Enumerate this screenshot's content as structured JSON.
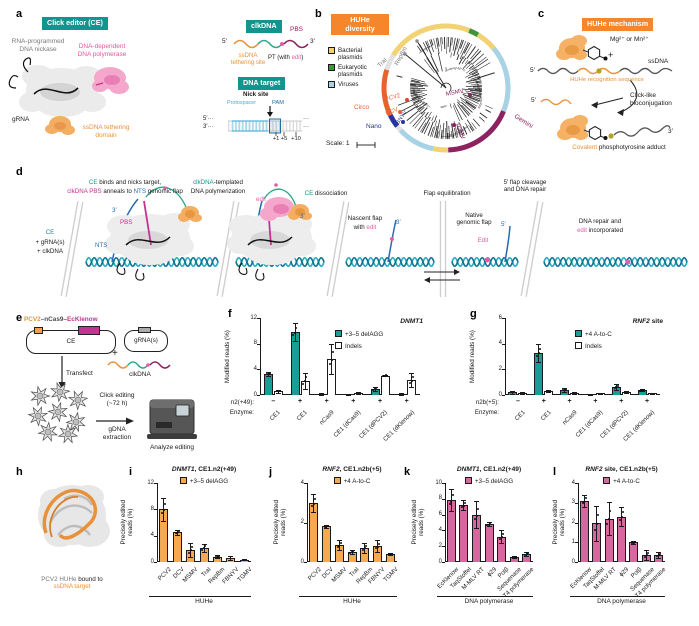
{
  "colors": {
    "teal": "#12958E",
    "orange_banner": "#F6862B",
    "ssdna_orange": "#E8913B",
    "pink_blob": "#F4A6CB",
    "magenta": "#C2348F",
    "deep_magenta": "#8E2160",
    "edit_pink": "#E85BA8",
    "nts_blue": "#2A6BAD",
    "protospacer_blue": "#4FA8D0",
    "pam_blue": "#1C6E9E",
    "bacterial_yellow": "#F2D272",
    "eukaryotic_green": "#3E9639",
    "virus_lightblue": "#A8D3E4",
    "circo_orange": "#E8632C",
    "nano_navy": "#28339E",
    "gemini_purple": "#8E2160",
    "bar_teal": "#179E96",
    "bar_orange": "#F6A94E",
    "bar_pink": "#D5699F",
    "helix_light": "#29A8C2",
    "helix_dark": "#0E7490"
  },
  "panels": {
    "a": "a",
    "b": "b",
    "c": "c",
    "d": "d",
    "e": "e",
    "f": "f",
    "g": "g",
    "h": "h",
    "i": "i",
    "j": "j",
    "k": "k",
    "l": "l"
  },
  "a": {
    "banner": "Click editor (CE)",
    "nickase": "RNA-programmed\nDNA nickase",
    "polymerase": "DNA-dependent\nDNA polymerase",
    "grna": "gRNA",
    "tether": "ssDNA tethering\ndomain",
    "clk_banner": "clkDNA",
    "five": "5′",
    "three": "3′",
    "pbs": "PBS",
    "tether_site": "ssDNA\ntethering site",
    "pt_a": "PT (with ",
    "pt_b": "edit",
    "pt_c": ")",
    "target_banner": "DNA target",
    "nick": "Nick site",
    "protospacer": "Protospacer",
    "pam": "PAM",
    "five_dots": "5′···",
    "three_dots": "3′···",
    "dots": "···",
    "p1": "+1",
    "p5": "+5",
    "p10": "+10"
  },
  "b": {
    "banner": "HUHe\ndiversity",
    "legend": [
      {
        "label": "Bacterial\nplasmids",
        "color": "#F2D272"
      },
      {
        "label": "Eukaryotic\nplasmids",
        "color": "#3E9639"
      },
      {
        "label": "Viruses",
        "color": "#A8D3E4"
      }
    ],
    "taxa": {
      "trai": "TraI",
      "repbm": "RepBm",
      "pcv2": "PCV2",
      "dcv": "DCV",
      "fbnyv": "FBNYV",
      "msmv": "MSMV",
      "tgmv": "TGMV"
    },
    "clades": {
      "circo": "Circo",
      "nano": "Nano",
      "gemini": "Gemini"
    },
    "scale": "Scale: 1"
  },
  "c": {
    "banner": "HUHe mechanism",
    "metal": "Mg²⁺ or Mn²⁺",
    "plus": "+",
    "ssdna": "ssDNA",
    "five": "5′",
    "five2": "5′",
    "three": "3′",
    "recognition": "HUHe recognition sequence",
    "click": "Click-like\nbioconjugation",
    "adduct_a": "Covalent",
    "adduct_b": " phosphotyrosine adduct"
  },
  "d": {
    "intro1": "CE",
    "intro2": "+ gRNA(s)",
    "intro3": "+ clkDNA",
    "s1a": "CE",
    "s1b": " binds and nicks target,",
    "s1c": "clkDNA PBS",
    "s1d": " anneals to ",
    "s1e": "NTS",
    "s1f": " genomic flap",
    "s2a": "clkDNA",
    "s2b": "-templated",
    "s2c": "DNA polymerization",
    "edit": "edit",
    "s3a": "CE",
    "s3b": " dissociation",
    "s4": "Flap equilibration",
    "s5": "5′ flap cleavage\nand DNA repair",
    "nf1": "Nascent flap",
    "nf2": "with ",
    "nf3": "edit",
    "three": "3′",
    "native": "Native\ngenomic flap",
    "five": "5′",
    "edit2": "Edit",
    "fin1": "DNA repair and",
    "fin2": "edit",
    "fin3": " incorporated",
    "pbs": "PBS",
    "nts": "NTS",
    "three2": "3′"
  },
  "e": {
    "title_a": "PCV2",
    "title_b": "–nCas9–",
    "title_c": "EcKlenow",
    "ce": "CE",
    "grna": "gRNA(s)",
    "plus": "+",
    "clkdna": "clkDNA",
    "transfect": "Transfect",
    "click": "Click editing\n(~72 h)",
    "gdna": "gDNA\nextraction",
    "analyze": "Analyze editing"
  },
  "h": {
    "cap_a": "PCV2 HUHe ",
    "cap_b": "bound to",
    "cap_c": "ssDNA target"
  },
  "chart_data": [
    {
      "id": "f",
      "type": "bar",
      "title_italic": "DNMT1",
      "title_rest": "",
      "ylabel": "Modified reads (%)",
      "ylim": [
        0,
        12
      ],
      "yticks": [
        0,
        4,
        8,
        12
      ],
      "categories": [
        "CE1",
        "CE1",
        "nCas9",
        "CE1 (dCas9)",
        "CE1 (dPCV2)",
        "CE1 (dKlenow)"
      ],
      "sign_row": {
        "label": "n2(+49):",
        "values": [
          "–",
          "+",
          "+",
          "+",
          "+",
          "+"
        ]
      },
      "cat_row_label": "Enzyme:",
      "series": [
        {
          "name": "+3–5 delAGG",
          "color": "#179E96",
          "values": [
            3.3,
            9.8,
            0.15,
            0.1,
            0.9,
            0.15
          ],
          "errors": [
            0.3,
            1.4,
            0.1,
            0.08,
            0.3,
            0.1
          ]
        },
        {
          "name": "Indels",
          "color": "#FFFFFF",
          "values": [
            0.55,
            2.2,
            5.6,
            0.35,
            3.0,
            2.3
          ],
          "errors": [
            0.2,
            1.2,
            2.3,
            0.15,
            0.1,
            1.1
          ]
        }
      ]
    },
    {
      "id": "g",
      "type": "bar",
      "title_italic": "RNF2",
      "title_rest": " site",
      "ylabel": "Modified reads (%)",
      "ylim": [
        0,
        6
      ],
      "yticks": [
        0,
        2,
        4,
        6
      ],
      "categories": [
        "CE1",
        "CE1",
        "nCas9",
        "CE1 (dCas9)",
        "CE1 (dPCV2)",
        "CE1 (dKlenow)"
      ],
      "sign_row": {
        "label": "n2b(+5):",
        "values": [
          "–",
          "+",
          "+",
          "+",
          "+",
          "+"
        ]
      },
      "cat_row_label": "Enzyme:",
      "series": [
        {
          "name": "+4 A-to-C",
          "color": "#179E96",
          "values": [
            0.22,
            3.3,
            0.42,
            0.06,
            0.62,
            0.38
          ],
          "errors": [
            0.12,
            0.7,
            0.15,
            0.05,
            0.25,
            0.1
          ]
        },
        {
          "name": "Indels",
          "color": "#FFFFFF",
          "values": [
            0.12,
            0.3,
            0.18,
            0.12,
            0.22,
            0.12
          ],
          "errors": [
            0.08,
            0.1,
            0.08,
            0.05,
            0.1,
            0.05
          ]
        }
      ]
    },
    {
      "id": "i",
      "type": "bar",
      "title_italic": "DNMT1",
      "title_rest": ", CE1.n2(+49)",
      "ylabel": "Precisely edited\nreads (%)",
      "ylim": [
        0,
        12
      ],
      "yticks": [
        0,
        4,
        8,
        12
      ],
      "categories": [
        "PCV2",
        "DCV",
        "MSMV",
        "TraI",
        "RepBm",
        "FBNYV",
        "TGMV"
      ],
      "group_label": "HUHe",
      "series": [
        {
          "name": "+3–5 delAGG",
          "color": "#F6A94E",
          "values": [
            8.0,
            4.5,
            1.8,
            2.1,
            0.8,
            0.6,
            0.35
          ],
          "errors": [
            1.7,
            0.35,
            1.1,
            0.6,
            0.2,
            0.25,
            0.1
          ]
        }
      ]
    },
    {
      "id": "j",
      "type": "bar",
      "title_italic": "RNF2",
      "title_rest": ", CE1.n2b(+5)",
      "ylabel": "Precisely edited\nreads (%)",
      "ylim": [
        0,
        4
      ],
      "yticks": [
        0,
        2,
        4
      ],
      "categories": [
        "PCV2",
        "DCV",
        "MSMV",
        "TraI",
        "RepBm",
        "FBNYV",
        "TGMV"
      ],
      "group_label": "HUHe",
      "series": [
        {
          "name": "+4 A-to-C",
          "color": "#F6A94E",
          "values": [
            3.0,
            1.8,
            0.85,
            0.5,
            0.7,
            0.8,
            0.4
          ],
          "errors": [
            0.45,
            0.08,
            0.25,
            0.1,
            0.25,
            0.3,
            0.05
          ]
        }
      ]
    },
    {
      "id": "k",
      "type": "bar",
      "title_italic": "DNMT1",
      "title_rest": ", CE1.n2(+49)",
      "ylabel": "Precisely edited\nreads (%)",
      "ylim": [
        0,
        10
      ],
      "yticks": [
        0,
        2,
        4,
        6,
        8,
        10
      ],
      "categories": [
        "EcKlenow",
        "TaqStoffel",
        "M-MLV RT",
        "ϕ29",
        "Polβ",
        "Sequenase",
        "T4 polymerase"
      ],
      "group_label": "DNA polymerase",
      "series": [
        {
          "name": "+3–5 delAGG",
          "color": "#D5699F",
          "values": [
            7.8,
            7.2,
            6.0,
            4.8,
            3.2,
            0.6,
            1.0
          ],
          "errors": [
            1.4,
            0.6,
            1.7,
            0.3,
            0.8,
            0.15,
            0.25
          ]
        }
      ]
    },
    {
      "id": "l",
      "type": "bar",
      "title_italic": "RNF2",
      "title_rest": " site, CE1.n2b(+5)",
      "ylabel": "Precisely edited\nreads (%)",
      "ylim": [
        0,
        4
      ],
      "yticks": [
        0,
        1,
        2,
        3,
        4
      ],
      "categories": [
        "EcKlenow",
        "TaqStoffel",
        "M-MLV RT",
        "ϕ29",
        "Polβ",
        "Sequenase",
        "T4 polymerase"
      ],
      "group_label": "DNA polymerase",
      "series": [
        {
          "name": "+4 A-to-C",
          "color": "#D5699F",
          "values": [
            3.1,
            1.95,
            2.2,
            2.3,
            1.0,
            0.35,
            0.35
          ],
          "errors": [
            0.3,
            0.9,
            0.85,
            0.5,
            0.08,
            0.25,
            0.15
          ]
        }
      ]
    }
  ]
}
